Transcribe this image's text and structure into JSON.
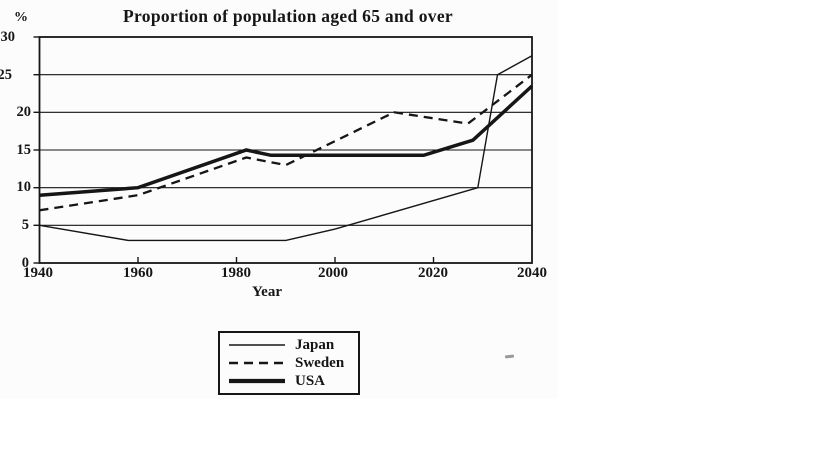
{
  "chart_data": {
    "type": "line",
    "title": "Proportion of population aged 65 and over",
    "xlabel": "Year",
    "ylabel": "%",
    "x_ticks": [
      "1940",
      "1960",
      "1980",
      "2000",
      "2020",
      "2040"
    ],
    "y_ticks": [
      "0",
      "5",
      "10",
      "15",
      "20",
      "25",
      "30"
    ],
    "xlim": [
      1940,
      2040
    ],
    "ylim": [
      0,
      30
    ],
    "grid": "horizontal gridlines every 5 percent",
    "line_color": "#161616",
    "legend": {
      "position": "boxed, centered below chart",
      "entries": [
        "Japan",
        "Sweden",
        "USA"
      ]
    },
    "series": [
      {
        "name": "Japan",
        "style": "thin-solid",
        "points": [
          [
            1940,
            5
          ],
          [
            1958,
            3
          ],
          [
            1990,
            3
          ],
          [
            2000,
            4.5
          ],
          [
            2029,
            10
          ],
          [
            2033,
            25
          ],
          [
            2040,
            27.5
          ]
        ]
      },
      {
        "name": "Sweden",
        "style": "dashed",
        "points": [
          [
            1940,
            7
          ],
          [
            1960,
            9
          ],
          [
            1982,
            14
          ],
          [
            1990,
            13
          ],
          [
            2012,
            20
          ],
          [
            2027,
            18.5
          ],
          [
            2040,
            25
          ]
        ]
      },
      {
        "name": "USA",
        "style": "thick-solid",
        "points": [
          [
            1940,
            9
          ],
          [
            1960,
            10
          ],
          [
            1982,
            15
          ],
          [
            1987,
            14.3
          ],
          [
            2018,
            14.3
          ],
          [
            2028,
            16.3
          ],
          [
            2040,
            23.5
          ]
        ]
      }
    ]
  },
  "figure": {
    "smudge_mark": ""
  }
}
